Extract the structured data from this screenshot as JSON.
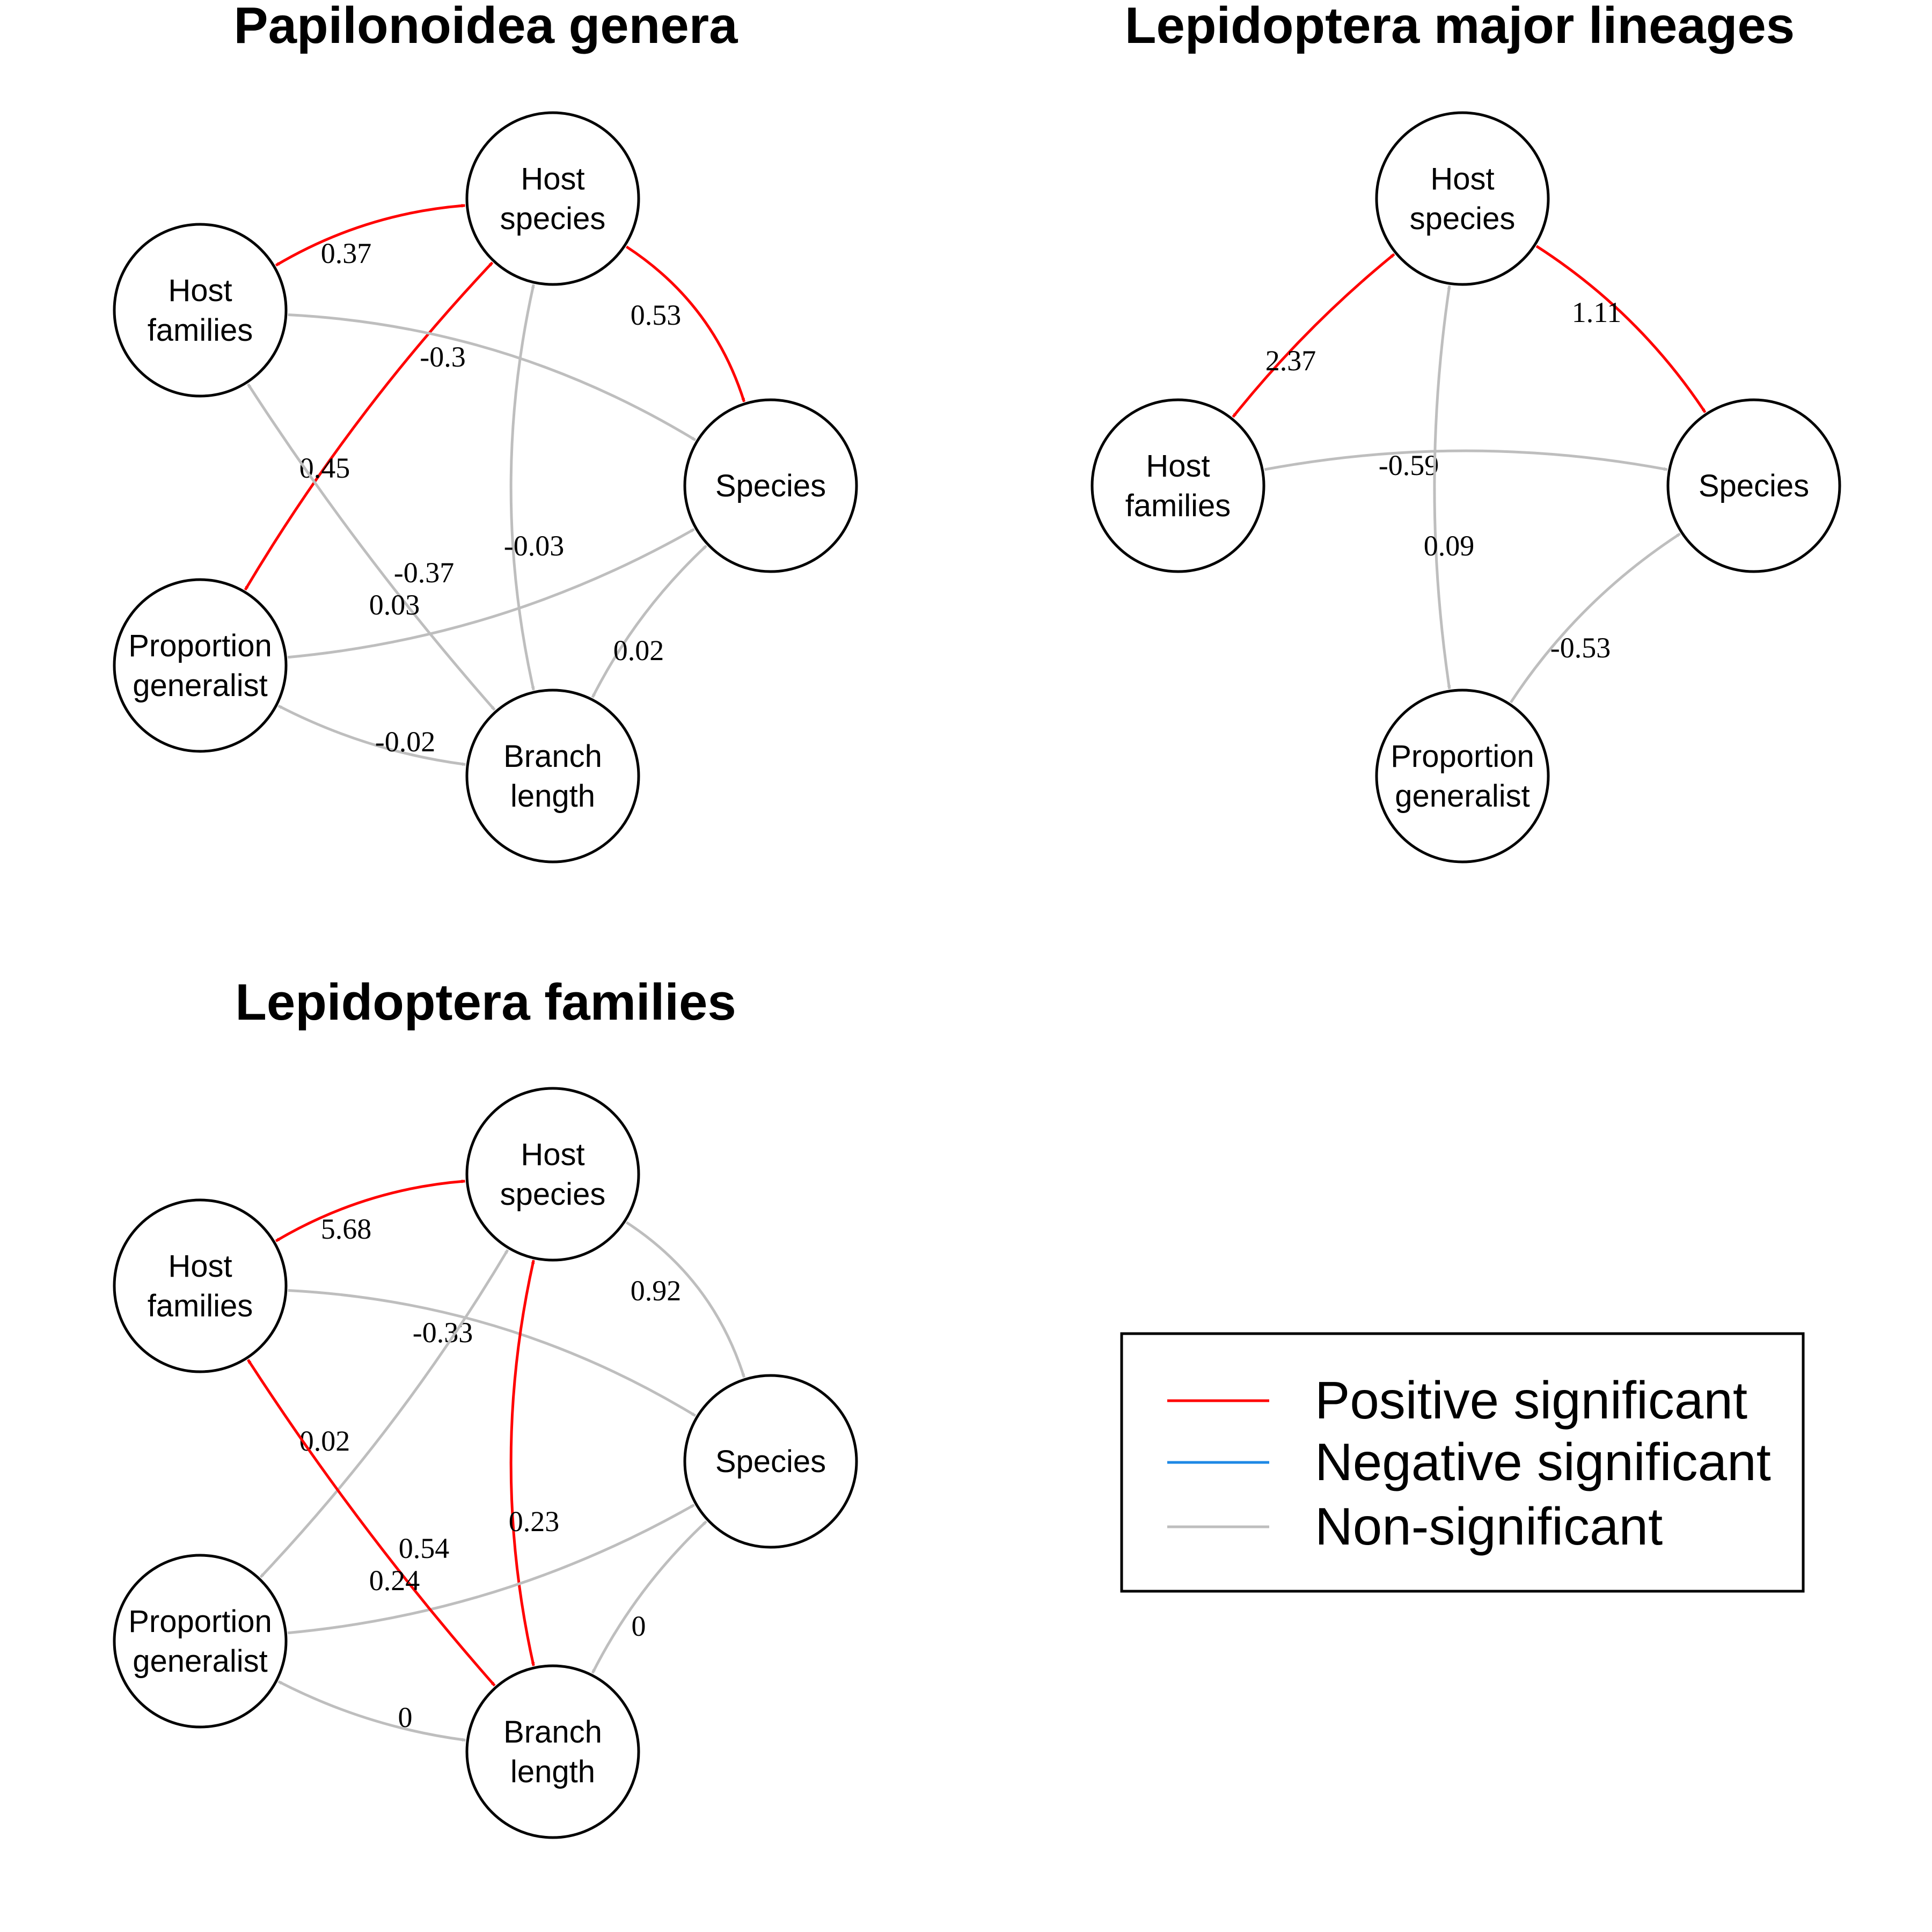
{
  "colors": {
    "positive": "#ff0000",
    "negative": "#1e88e5",
    "nonsig": "#bebebe"
  },
  "panels": [
    {
      "title": "Papilonoidea genera",
      "nodes": [
        {
          "id": "hs",
          "lines": [
            "Host",
            "species"
          ]
        },
        {
          "id": "hf",
          "lines": [
            "Host",
            "families"
          ]
        },
        {
          "id": "sp",
          "lines": [
            "Species"
          ]
        },
        {
          "id": "pg",
          "lines": [
            "Proportion",
            "generalist"
          ]
        },
        {
          "id": "bl",
          "lines": [
            "Branch",
            "length"
          ]
        }
      ],
      "edges": [
        {
          "from": "hf",
          "to": "hs",
          "label": "0.37",
          "type": "positive",
          "double": true
        },
        {
          "from": "hs",
          "to": "sp",
          "label": "0.53",
          "type": "positive",
          "double": false
        },
        {
          "from": "hs",
          "to": "pg",
          "label": "0.45",
          "type": "positive",
          "double": true
        },
        {
          "from": "hf",
          "to": "sp",
          "label": "-0.3",
          "type": "nonsig",
          "double": false
        },
        {
          "from": "hs",
          "to": "bl",
          "label": "-0.03",
          "type": "nonsig",
          "double": true
        },
        {
          "from": "pg",
          "to": "sp",
          "label": "-0.37",
          "type": "nonsig",
          "double": false
        },
        {
          "from": "hf",
          "to": "bl",
          "label": "0.03",
          "type": "nonsig",
          "double": true
        },
        {
          "from": "bl",
          "to": "sp",
          "label": "0.02",
          "type": "nonsig",
          "double": true
        },
        {
          "from": "pg",
          "to": "bl",
          "label": "-0.02",
          "type": "nonsig",
          "double": true
        }
      ]
    },
    {
      "title": "Lepidoptera major lineages",
      "nodes": [
        {
          "id": "hs",
          "lines": [
            "Host",
            "species"
          ]
        },
        {
          "id": "hf",
          "lines": [
            "Host",
            "families"
          ]
        },
        {
          "id": "sp",
          "lines": [
            "Species"
          ]
        },
        {
          "id": "pg",
          "lines": [
            "Proportion",
            "generalist"
          ]
        }
      ],
      "edges": [
        {
          "from": "hs",
          "to": "hf",
          "label": "2.37",
          "type": "positive",
          "double": true
        },
        {
          "from": "hs",
          "to": "sp",
          "label": "1.11",
          "type": "positive",
          "double": false
        },
        {
          "from": "hf",
          "to": "sp",
          "label": "-0.59",
          "type": "nonsig",
          "double": false
        },
        {
          "from": "hs",
          "to": "pg",
          "label": "0.09",
          "type": "nonsig",
          "double": true
        },
        {
          "from": "pg",
          "to": "sp",
          "label": "-0.53",
          "type": "nonsig",
          "double": false
        }
      ]
    },
    {
      "title": "Lepidoptera families",
      "nodes": [
        {
          "id": "hs",
          "lines": [
            "Host",
            "species"
          ]
        },
        {
          "id": "hf",
          "lines": [
            "Host",
            "families"
          ]
        },
        {
          "id": "sp",
          "lines": [
            "Species"
          ]
        },
        {
          "id": "pg",
          "lines": [
            "Proportion",
            "generalist"
          ]
        },
        {
          "id": "bl",
          "lines": [
            "Branch",
            "length"
          ]
        }
      ],
      "edges": [
        {
          "from": "hf",
          "to": "hs",
          "label": "5.68",
          "type": "positive",
          "double": true
        },
        {
          "from": "hs",
          "to": "sp",
          "label": "0.92",
          "type": "nonsig",
          "double": false
        },
        {
          "from": "hf",
          "to": "sp",
          "label": "-0.33",
          "type": "nonsig",
          "double": false
        },
        {
          "from": "hs",
          "to": "pg",
          "label": "0.02",
          "type": "nonsig",
          "double": true
        },
        {
          "from": "hs",
          "to": "bl",
          "label": "0.23",
          "type": "positive",
          "double": true
        },
        {
          "from": "pg",
          "to": "sp",
          "label": "0.54",
          "type": "nonsig",
          "double": false
        },
        {
          "from": "hf",
          "to": "bl",
          "label": "0.24",
          "type": "positive",
          "double": true
        },
        {
          "from": "bl",
          "to": "sp",
          "label": "0",
          "type": "nonsig",
          "double": true
        },
        {
          "from": "pg",
          "to": "bl",
          "label": "0",
          "type": "nonsig",
          "double": true
        }
      ]
    }
  ],
  "legend": {
    "items": [
      {
        "label": "Positive significant",
        "type": "positive"
      },
      {
        "label": "Negative significant",
        "type": "negative"
      },
      {
        "label": "Non-significant",
        "type": "nonsig"
      }
    ]
  }
}
